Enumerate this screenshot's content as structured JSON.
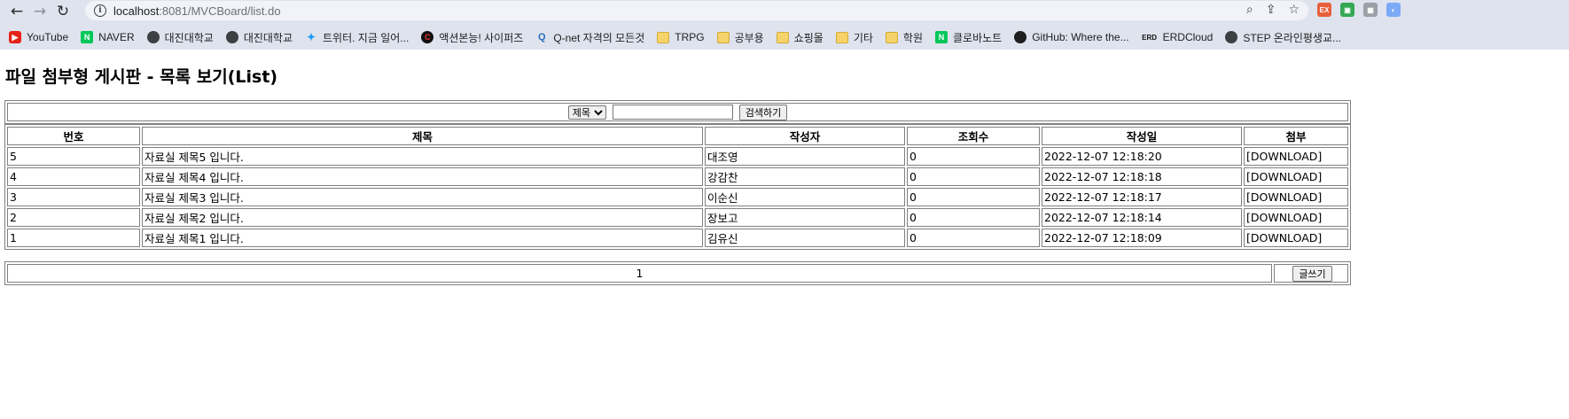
{
  "browser": {
    "url_host": "localhost",
    "url_rest": ":8081/MVCBoard/list.do",
    "extensions": [
      {
        "label": "EX",
        "color": "#e8603c"
      },
      {
        "label": "▣",
        "color": "#34a853"
      },
      {
        "label": "▦",
        "color": "#9aa0a6"
      },
      {
        "label": "◐",
        "color": "#7baaf7"
      }
    ],
    "bookmarks": [
      {
        "label": "YouTube",
        "icon": "youtube-icon",
        "glyph": "▶",
        "cls": "yt"
      },
      {
        "label": "NAVER",
        "icon": "naver-icon",
        "glyph": "N",
        "cls": "naver"
      },
      {
        "label": "대진대학교",
        "icon": "globe-icon",
        "glyph": "",
        "cls": "globe"
      },
      {
        "label": "대진대학교",
        "icon": "globe-icon",
        "glyph": "",
        "cls": "globe"
      },
      {
        "label": "트위터. 지금 일어...",
        "icon": "twitter-icon",
        "glyph": "✦",
        "cls": "tw"
      },
      {
        "label": "액션본능! 사이퍼즈",
        "icon": "cyphers-icon",
        "glyph": "C",
        "cls": "cy"
      },
      {
        "label": "Q-net 자격의 모든것",
        "icon": "qnet-icon",
        "glyph": "Q",
        "cls": "qn"
      },
      {
        "label": "TRPG",
        "icon": "folder-icon",
        "glyph": "",
        "cls": "folder"
      },
      {
        "label": "공부용",
        "icon": "folder-icon",
        "glyph": "",
        "cls": "folder"
      },
      {
        "label": "쇼핑몰",
        "icon": "folder-icon",
        "glyph": "",
        "cls": "folder"
      },
      {
        "label": "기타",
        "icon": "folder-icon",
        "glyph": "",
        "cls": "folder"
      },
      {
        "label": "학원",
        "icon": "folder-icon",
        "glyph": "",
        "cls": "folder"
      },
      {
        "label": "클로바노트",
        "icon": "naver-icon",
        "glyph": "N",
        "cls": "naver"
      },
      {
        "label": "GitHub: Where the...",
        "icon": "github-icon",
        "glyph": "",
        "cls": "gh"
      },
      {
        "label": "ERDCloud",
        "icon": "erdcloud-icon",
        "glyph": "ERD",
        "cls": "erd"
      },
      {
        "label": "STEP 온라인평생교...",
        "icon": "globe-icon",
        "glyph": "",
        "cls": "globe"
      }
    ]
  },
  "page": {
    "title": "파일 첨부형 게시판 - 목록 보기(List)"
  },
  "search": {
    "field_selected": "제목",
    "keyword": "",
    "button_label": "검색하기"
  },
  "table": {
    "headers": [
      "번호",
      "제목",
      "작성자",
      "조회수",
      "작성일",
      "첨부"
    ],
    "rows": [
      {
        "num": "5",
        "title": "자료실 제목5 입니다.",
        "author": "대조영",
        "views": "0",
        "date": "2022-12-07 12:18:20",
        "attach": "[DOWNLOAD]"
      },
      {
        "num": "4",
        "title": "자료실 제목4 입니다.",
        "author": "강감찬",
        "views": "0",
        "date": "2022-12-07 12:18:18",
        "attach": "[DOWNLOAD]"
      },
      {
        "num": "3",
        "title": "자료실 제목3 입니다.",
        "author": "이순신",
        "views": "0",
        "date": "2022-12-07 12:18:17",
        "attach": "[DOWNLOAD]"
      },
      {
        "num": "2",
        "title": "자료실 제목2 입니다.",
        "author": "장보고",
        "views": "0",
        "date": "2022-12-07 12:18:14",
        "attach": "[DOWNLOAD]"
      },
      {
        "num": "1",
        "title": "자료실 제목1 입니다.",
        "author": "김유신",
        "views": "0",
        "date": "2022-12-07 12:18:09",
        "attach": "[DOWNLOAD]"
      }
    ]
  },
  "footer": {
    "page_number": "1",
    "write_label": "글쓰기"
  }
}
